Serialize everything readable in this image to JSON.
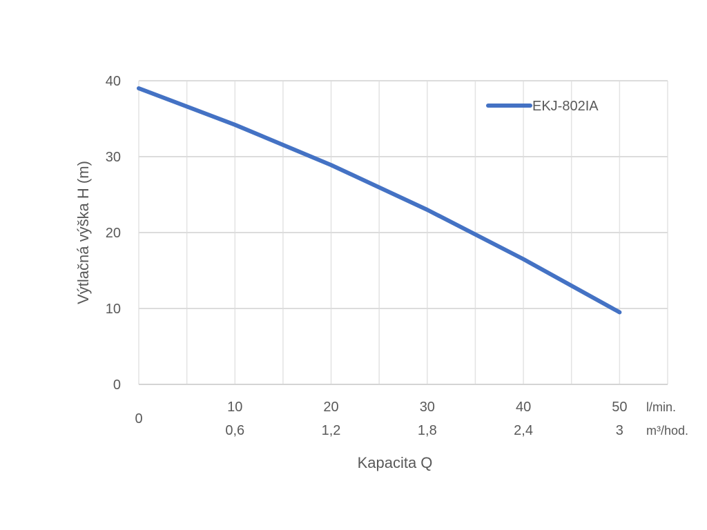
{
  "chart_data": {
    "type": "line",
    "title": "",
    "xlabel": "Kapacita Q",
    "ylabel": "Výtlačná výška H (m)",
    "xlim": [
      0,
      55
    ],
    "ylim": [
      0,
      40
    ],
    "grid": true,
    "x_grid_step": 5,
    "y_ticks": [
      0,
      10,
      20,
      30,
      40
    ],
    "y_tick_labels": [
      "0",
      "10",
      "20",
      "30",
      "40"
    ],
    "x_ticks": [
      10,
      20,
      30,
      40,
      50
    ],
    "x_tick_labels_primary": [
      "10",
      "20",
      "30",
      "40",
      "50"
    ],
    "x_tick_labels_secondary": [
      "0,6",
      "1,2",
      "1,8",
      "2,4",
      "3"
    ],
    "x_origin_label": "0",
    "x_unit_primary": "l/min.",
    "x_unit_secondary": "m³/hod.",
    "legend_position": "top-right",
    "series": [
      {
        "name": "EKJ-802IA",
        "color": "#4472c4",
        "x": [
          0,
          10,
          20,
          30,
          40,
          50
        ],
        "y": [
          39,
          34.2,
          28.9,
          23,
          16.5,
          9.5
        ]
      }
    ]
  }
}
